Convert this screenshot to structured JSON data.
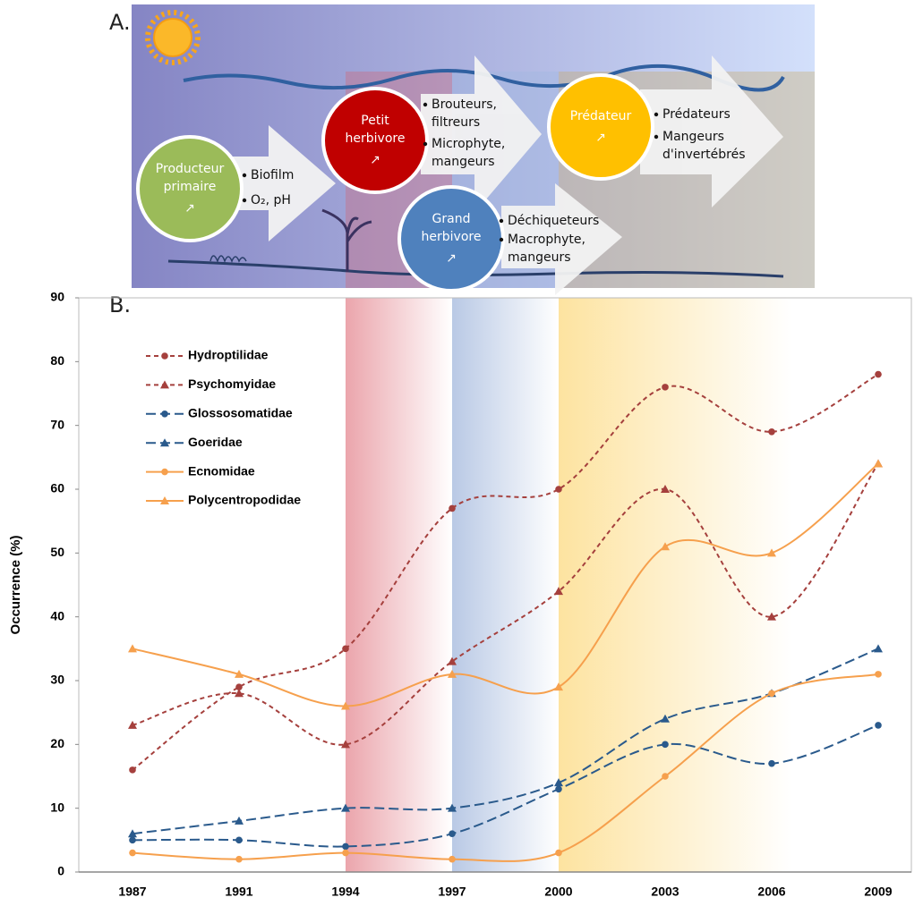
{
  "panel_labels": [
    "A.",
    "B."
  ],
  "diagram": {
    "nodes": [
      {
        "label": [
          "Producteur",
          "primaire"
        ],
        "icon": "↗",
        "bullets": [
          [
            "Biofilm"
          ],
          [
            "O₂, pH"
          ]
        ]
      },
      {
        "label": [
          "Petit",
          "herbivore"
        ],
        "icon": "↗",
        "bullets": [
          [
            "Brouteurs,",
            "filtreurs"
          ],
          [
            "Microphyte,",
            "mangeurs"
          ]
        ]
      },
      {
        "label": [
          "Grand",
          "herbivore"
        ],
        "icon": "↗",
        "bullets": [
          [
            "Déchiqueteurs"
          ],
          [
            "Macrophyte,",
            "mangeurs"
          ]
        ]
      },
      {
        "label": [
          "Prédateur"
        ],
        "icon": "↗",
        "bullets": [
          [
            "Prédateurs"
          ],
          [
            "Mangeurs",
            "d'invertébrés"
          ]
        ]
      }
    ]
  },
  "chart_data": {
    "type": "line",
    "y_label": "Occurrence (%)",
    "categories": [
      "1987",
      "1991",
      "1994",
      "1997",
      "2000",
      "2003",
      "2006",
      "2009"
    ],
    "ylim": [
      0,
      90
    ],
    "yticks": [
      0,
      10,
      20,
      30,
      40,
      50,
      60,
      70,
      80,
      90
    ],
    "smooth": true,
    "legend": "top-left",
    "series": [
      {
        "name": "Hydroptilidae",
        "color": "#a5403d",
        "line_style": "short-dash",
        "marker": "circle",
        "values": [
          16,
          29,
          35,
          57,
          60,
          76,
          69,
          78
        ]
      },
      {
        "name": "Psychomyidae",
        "color": "#a5403d",
        "line_style": "short-dash",
        "marker": "triangle",
        "values": [
          23,
          28,
          20,
          33,
          44,
          60,
          40,
          64
        ]
      },
      {
        "name": "Glossosomatidae",
        "color": "#2a5a8c",
        "line_style": "long-dash",
        "marker": "circle",
        "values": [
          5,
          5,
          4,
          6,
          13,
          20,
          17,
          23
        ]
      },
      {
        "name": "Goeridae",
        "color": "#2a5a8c",
        "line_style": "long-dash",
        "marker": "triangle",
        "values": [
          6,
          8,
          10,
          10,
          14,
          24,
          28,
          35
        ]
      },
      {
        "name": "Ecnomidae",
        "color": "#f6a04d",
        "line_style": "solid",
        "marker": "circle",
        "values": [
          3,
          2,
          3,
          2,
          3,
          15,
          28,
          31
        ]
      },
      {
        "name": "Polycentropodidae",
        "color": "#f6a04d",
        "line_style": "solid",
        "marker": "triangle",
        "values": [
          35,
          31,
          26,
          31,
          29,
          51,
          50,
          64
        ]
      }
    ]
  }
}
